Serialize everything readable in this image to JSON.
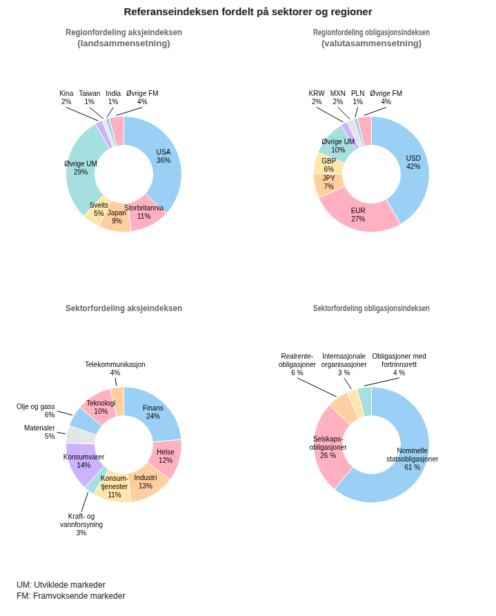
{
  "title": "Referanseindeksen fordelt på sektorer og regioner",
  "annotations": [
    "UM: Utviklede markeder\nFM: Framvoksende markeder"
  ],
  "chart_data": [
    {
      "type": "doughnut",
      "title": "Regionfordeling aksjeindeksen\n(landsammensetning)",
      "categories": [
        "USA",
        "Storbritannia",
        "Japan",
        "Sveits",
        "Øvrige UM",
        "Kina",
        "Taiwan",
        "India",
        "Øvrige FM"
      ],
      "values": [
        36,
        11,
        9,
        5,
        29,
        2,
        1,
        1,
        4
      ],
      "value_labels": [
        "36%",
        "11%",
        "9%",
        "5%",
        "29%",
        "2%",
        "1%",
        "1%",
        "4%"
      ],
      "data_labels": true
    },
    {
      "type": "doughnut",
      "title": "Regionfordeling obligasjonsindeksen\n(valutasammensetning)",
      "categories": [
        "USD",
        "EUR",
        "JPY",
        "GBP",
        "Øvrige UM",
        "KRW",
        "MXN",
        "PLN",
        "Øvrige FM"
      ],
      "values": [
        42,
        27,
        7,
        6,
        10,
        2,
        2,
        1,
        4
      ],
      "value_labels": [
        "42%",
        "27%",
        "7%",
        "6%",
        "10%",
        "2%",
        "2%",
        "1%",
        "4%"
      ],
      "data_labels": true
    },
    {
      "type": "doughnut",
      "title": "Sektorfordeling aksjeindeksen",
      "categories": [
        "Finans",
        "Helse",
        "Industri",
        "Konsum-\ntjenester",
        "Kraft- og\nvannforsyning",
        "Konsumvarer",
        "Materialer",
        "Olje og gass",
        "Teknologi",
        "Telekommunikasjon"
      ],
      "values": [
        24,
        12,
        13,
        11,
        3,
        14,
        5,
        6,
        10,
        4
      ],
      "value_labels": [
        "24%",
        "12%",
        "13%",
        "11%",
        "3%",
        "14%",
        "5%",
        "6%",
        "10%",
        "4%"
      ],
      "data_labels": true
    },
    {
      "type": "doughnut",
      "title": "Sektorfordeling obligasjonsindeksen",
      "categories": [
        "Nominelle\nstatsobligasjoner",
        "Selskaps-\nobligasjoner",
        "Realrente-\nobligasjoner",
        "Internasjonale\norganisasjoner",
        "Obligasjoner med\nfortrinnsrett"
      ],
      "values": [
        61,
        26,
        6,
        3,
        4
      ],
      "value_labels": [
        "61 %",
        "26 %",
        "6 %",
        "3 %",
        "4 %"
      ],
      "data_labels": true
    }
  ]
}
